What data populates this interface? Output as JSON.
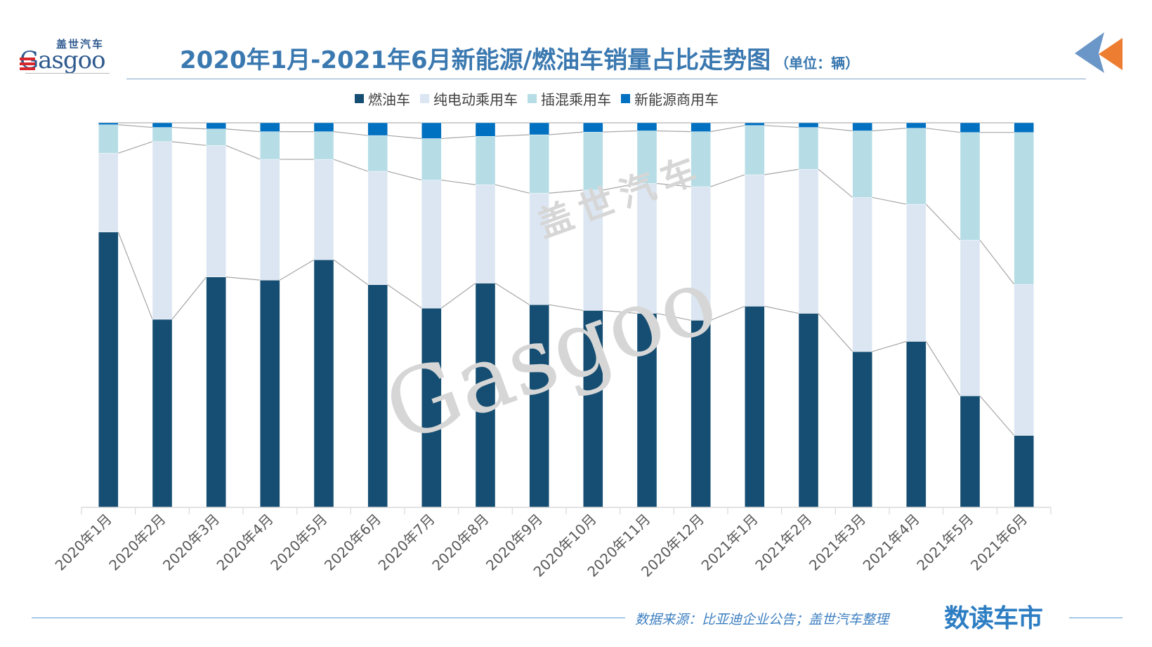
{
  "header": {
    "logo_cn": "盖世汽车",
    "logo_en": "Gasgoo",
    "title": "2020年1月-2021年6月新能源/燃油车销量占比走势图",
    "unit": "（单位：辆）"
  },
  "footer": {
    "source": "数据来源：比亚迪企业公告；盖世汽车整理",
    "brand": "数读车市"
  },
  "watermark": {
    "en": "Gasgoo",
    "cn": "盖世汽车"
  },
  "colors": {
    "fuel": "#154e72",
    "bev": "#dce6f2",
    "phev": "#b6dde6",
    "commercial": "#0070c0",
    "connector": "#a6a6a6",
    "title": "#3a78b0"
  },
  "chart_data": {
    "type": "bar",
    "stacked": "percent",
    "title": "2020年1月-2021年6月新能源/燃油车销量占比走势图",
    "legend_position": "top",
    "grid": false,
    "ylim": [
      0,
      100
    ],
    "categories": [
      "2020年1月",
      "2020年2月",
      "2020年3月",
      "2020年4月",
      "2020年5月",
      "2020年6月",
      "2020年7月",
      "2020年8月",
      "2020年9月",
      "2020年10月",
      "2020年11月",
      "2020年12月",
      "2021年1月",
      "2021年2月",
      "2021年3月",
      "2021年4月",
      "2021年5月",
      "2021年6月"
    ],
    "series": [
      {
        "name": "燃油车",
        "values": [
          71.6,
          48.9,
          59.9,
          59.1,
          64.3,
          57.9,
          51.8,
          58.3,
          52.7,
          51.2,
          50.5,
          48.6,
          52.3,
          50.5,
          40.5,
          43.2,
          29.0,
          18.7
        ]
      },
      {
        "name": "纯电动乘用车",
        "values": [
          20.5,
          46.2,
          34.2,
          31.4,
          26.1,
          29.5,
          33.3,
          25.6,
          29.0,
          31.3,
          33.8,
          34.7,
          34.2,
          37.5,
          40.1,
          35.7,
          40.5,
          39.3
        ]
      },
      {
        "name": "插混乘用车",
        "values": [
          7.4,
          3.7,
          4.3,
          7.2,
          7.2,
          9.3,
          10.8,
          12.6,
          15.2,
          15.1,
          13.7,
          14.3,
          12.8,
          10.9,
          17.3,
          19.8,
          28.0,
          39.5
        ]
      },
      {
        "name": "新能源商用车",
        "values": [
          0.5,
          1.2,
          1.6,
          2.3,
          2.3,
          3.3,
          4.1,
          3.5,
          3.1,
          2.4,
          2.1,
          2.3,
          0.7,
          1.2,
          2.1,
          1.4,
          2.5,
          2.5
        ]
      }
    ]
  }
}
